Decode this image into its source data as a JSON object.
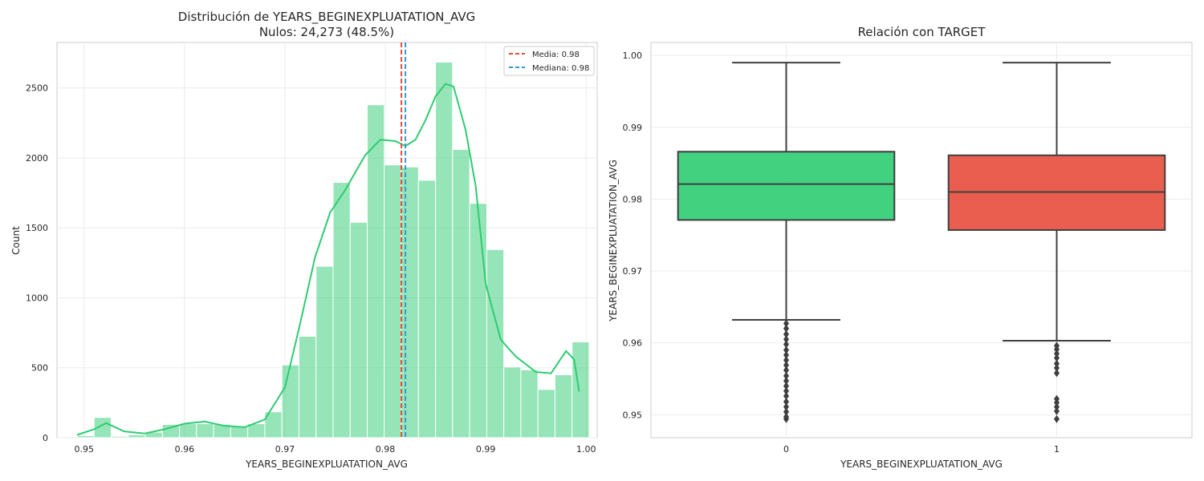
{
  "chart_data": [
    {
      "type": "bar",
      "title": "Distribución de YEARS_BEGINEXPLUATATION_AVG",
      "subtitle": "Nulos: 24,273 (48.5%)",
      "xlabel": "YEARS_BEGINEXPLUATATION_AVG",
      "ylabel": "Count",
      "xlim": [
        0.9473,
        1.0011
      ],
      "ylim": [
        0,
        2825
      ],
      "xticks": [
        0.95,
        0.96,
        0.97,
        0.98,
        0.99,
        1.0
      ],
      "xtick_labels": [
        "0.95",
        "0.96",
        "0.97",
        "0.98",
        "0.99",
        "1.00"
      ],
      "yticks": [
        0,
        500,
        1000,
        1500,
        2000,
        2500
      ],
      "ytick_labels": [
        "0",
        "500",
        "1000",
        "1500",
        "2000",
        "2500"
      ],
      "grid": true,
      "bar_color": "#2ecc71",
      "bins": [
        {
          "x0": 0.9493,
          "x1": 0.951,
          "count": 15
        },
        {
          "x0": 0.951,
          "x1": 0.9527,
          "count": 145
        },
        {
          "x0": 0.9527,
          "x1": 0.9544,
          "count": 10
        },
        {
          "x0": 0.9544,
          "x1": 0.9561,
          "count": 20
        },
        {
          "x0": 0.9561,
          "x1": 0.9578,
          "count": 40
        },
        {
          "x0": 0.9578,
          "x1": 0.9595,
          "count": 95
        },
        {
          "x0": 0.9595,
          "x1": 0.9612,
          "count": 100
        },
        {
          "x0": 0.9612,
          "x1": 0.9629,
          "count": 100
        },
        {
          "x0": 0.9629,
          "x1": 0.9646,
          "count": 95
        },
        {
          "x0": 0.9646,
          "x1": 0.9663,
          "count": 80
        },
        {
          "x0": 0.9663,
          "x1": 0.968,
          "count": 100
        },
        {
          "x0": 0.968,
          "x1": 0.9697,
          "count": 185
        },
        {
          "x0": 0.9697,
          "x1": 0.9714,
          "count": 520
        },
        {
          "x0": 0.9714,
          "x1": 0.9731,
          "count": 725
        },
        {
          "x0": 0.9731,
          "x1": 0.9748,
          "count": 1225
        },
        {
          "x0": 0.9748,
          "x1": 0.9765,
          "count": 1825
        },
        {
          "x0": 0.9765,
          "x1": 0.9782,
          "count": 1540
        },
        {
          "x0": 0.9782,
          "x1": 0.9799,
          "count": 2380
        },
        {
          "x0": 0.9799,
          "x1": 0.9816,
          "count": 1950
        },
        {
          "x0": 0.9816,
          "x1": 0.9833,
          "count": 1935
        },
        {
          "x0": 0.9833,
          "x1": 0.985,
          "count": 1840
        },
        {
          "x0": 0.985,
          "x1": 0.9867,
          "count": 2685
        },
        {
          "x0": 0.9867,
          "x1": 0.9884,
          "count": 2060
        },
        {
          "x0": 0.9884,
          "x1": 0.9901,
          "count": 1675
        },
        {
          "x0": 0.9901,
          "x1": 0.9918,
          "count": 1345
        },
        {
          "x0": 0.9918,
          "x1": 0.9935,
          "count": 505
        },
        {
          "x0": 0.9935,
          "x1": 0.9952,
          "count": 485
        },
        {
          "x0": 0.9952,
          "x1": 0.9969,
          "count": 345
        },
        {
          "x0": 0.9969,
          "x1": 0.9986,
          "count": 450
        },
        {
          "x0": 0.9986,
          "x1": 1.0003,
          "count": 685
        }
      ],
      "kde": {
        "color": "#2ecc71",
        "x": [
          0.9493,
          0.951,
          0.9522,
          0.954,
          0.956,
          0.958,
          0.96,
          0.962,
          0.964,
          0.966,
          0.968,
          0.97,
          0.9715,
          0.973,
          0.9745,
          0.976,
          0.978,
          0.9795,
          0.981,
          0.982,
          0.983,
          0.984,
          0.985,
          0.986,
          0.9868,
          0.988,
          0.989,
          0.99,
          0.9915,
          0.993,
          0.995,
          0.9965,
          0.998,
          0.9988,
          0.9993
        ],
        "y": [
          20,
          60,
          105,
          45,
          30,
          60,
          100,
          115,
          85,
          75,
          130,
          360,
          810,
          1290,
          1610,
          1770,
          2020,
          2130,
          2120,
          2085,
          2130,
          2270,
          2440,
          2530,
          2510,
          2200,
          1800,
          1100,
          700,
          580,
          470,
          460,
          620,
          560,
          330
        ]
      },
      "vlines": [
        {
          "label": "Media: 0.98",
          "value": 0.9816,
          "color": "#e74c3c"
        },
        {
          "label": "Mediana: 0.98",
          "value": 0.982,
          "color": "#3498db"
        }
      ],
      "legend": "top-right"
    },
    {
      "type": "box",
      "title": "Relación con TARGET",
      "xlabel": "YEARS_BEGINEXPLUATATION_AVG",
      "ylabel": "YEARS_BEGINEXPLUATATION_AVG",
      "categories": [
        "0",
        "1"
      ],
      "ylim": [
        0.9468,
        1.0018
      ],
      "yticks": [
        0.95,
        0.96,
        0.97,
        0.98,
        0.99,
        1.0
      ],
      "ytick_labels": [
        "0.95",
        "0.96",
        "0.97",
        "0.98",
        "0.99",
        "1.00"
      ],
      "grid": true,
      "boxes": [
        {
          "category": "0",
          "color": "#2ecc71",
          "whisker_low": 0.9632,
          "q1": 0.9771,
          "median": 0.9821,
          "q3": 0.9866,
          "whisker_high": 0.999,
          "outliers": [
            0.9627,
            0.962,
            0.9612,
            0.9605,
            0.9598,
            0.959,
            0.9583,
            0.9576,
            0.9569,
            0.9562,
            0.9554,
            0.9547,
            0.954,
            0.9533,
            0.9526,
            0.9518,
            0.9511,
            0.9504,
            0.9497,
            0.9494
          ]
        },
        {
          "category": "1",
          "color": "#e74c3c",
          "whisker_low": 0.9603,
          "q1": 0.9757,
          "median": 0.981,
          "q3": 0.9861,
          "whisker_high": 0.999,
          "outliers": [
            0.9596,
            0.9591,
            0.9585,
            0.9579,
            0.9571,
            0.9565,
            0.9558,
            0.9522,
            0.9517,
            0.9511,
            0.9505,
            0.9494
          ]
        }
      ]
    }
  ]
}
